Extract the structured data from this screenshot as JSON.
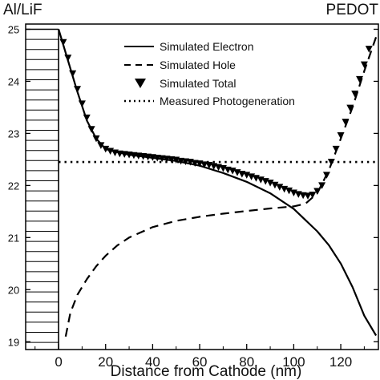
{
  "chart_data": {
    "type": "line",
    "title": "",
    "xlabel": "Distance from Cathode (nm)",
    "ylabel": "",
    "xlim": [
      -14,
      136
    ],
    "ylim": [
      18.85,
      25.1
    ],
    "xticks": [
      0,
      20,
      40,
      60,
      80,
      100,
      120
    ],
    "yticks": [
      19,
      20,
      21,
      22,
      23,
      24,
      25
    ],
    "grid": false,
    "legend_position": "top-right",
    "annotations": {
      "left_electrode": "Al/LiF",
      "right_electrode": "PEDOT"
    },
    "series": [
      {
        "name": "Simulated Electron",
        "style": "solid",
        "color": "#000000",
        "x": [
          0,
          4,
          8,
          12,
          16,
          20,
          25,
          30,
          40,
          50,
          60,
          70,
          80,
          90,
          100,
          110,
          115,
          120,
          125,
          130,
          135
        ],
        "y": [
          25.0,
          24.4,
          23.8,
          23.25,
          22.9,
          22.7,
          22.64,
          22.59,
          22.53,
          22.47,
          22.38,
          22.24,
          22.07,
          21.85,
          21.55,
          21.12,
          20.85,
          20.5,
          20.05,
          19.5,
          19.12
        ]
      },
      {
        "name": "Simulated Hole",
        "style": "dashed",
        "color": "#000000",
        "x": [
          3,
          5,
          8,
          12,
          16,
          20,
          25,
          30,
          40,
          50,
          60,
          70,
          80,
          90,
          100,
          105,
          110,
          115,
          120,
          125,
          130,
          135
        ],
        "y": [
          19.1,
          19.55,
          19.9,
          20.2,
          20.45,
          20.65,
          20.85,
          21.0,
          21.2,
          21.32,
          21.4,
          21.46,
          21.51,
          21.56,
          21.6,
          21.65,
          21.85,
          22.3,
          22.9,
          23.5,
          24.2,
          24.85
        ]
      },
      {
        "name": "Simulated Total",
        "style": "markers",
        "marker": "triangle-down",
        "color": "#000000",
        "x": [
          2,
          4,
          6,
          8,
          10,
          12,
          14,
          16,
          18,
          20,
          22,
          24,
          26,
          28,
          30,
          32,
          34,
          36,
          38,
          40,
          42,
          44,
          46,
          48,
          50,
          52,
          54,
          56,
          58,
          60,
          62,
          64,
          66,
          68,
          70,
          72,
          74,
          76,
          78,
          80,
          82,
          84,
          86,
          88,
          90,
          92,
          94,
          96,
          98,
          100,
          102,
          104,
          106,
          108,
          110,
          112,
          114,
          116,
          118,
          120,
          122,
          124,
          126,
          128,
          130,
          132
        ],
        "y": [
          24.75,
          24.45,
          24.15,
          23.85,
          23.57,
          23.3,
          23.08,
          22.9,
          22.77,
          22.7,
          22.66,
          22.63,
          22.61,
          22.6,
          22.59,
          22.58,
          22.57,
          22.56,
          22.55,
          22.54,
          22.53,
          22.52,
          22.51,
          22.5,
          22.49,
          22.47,
          22.46,
          22.45,
          22.43,
          22.42,
          22.4,
          22.39,
          22.37,
          22.35,
          22.33,
          22.3,
          22.28,
          22.25,
          22.22,
          22.2,
          22.17,
          22.14,
          22.11,
          22.08,
          22.05,
          22.01,
          21.97,
          21.93,
          21.9,
          21.86,
          21.83,
          21.81,
          21.8,
          21.82,
          21.89,
          22.0,
          22.2,
          22.45,
          22.7,
          22.96,
          23.22,
          23.49,
          23.76,
          24.04,
          24.32,
          24.62
        ]
      },
      {
        "name": "Measured Photogeneration",
        "style": "dotted",
        "color": "#000000",
        "x": [
          0,
          135
        ],
        "y": [
          22.45,
          22.45
        ]
      }
    ]
  }
}
